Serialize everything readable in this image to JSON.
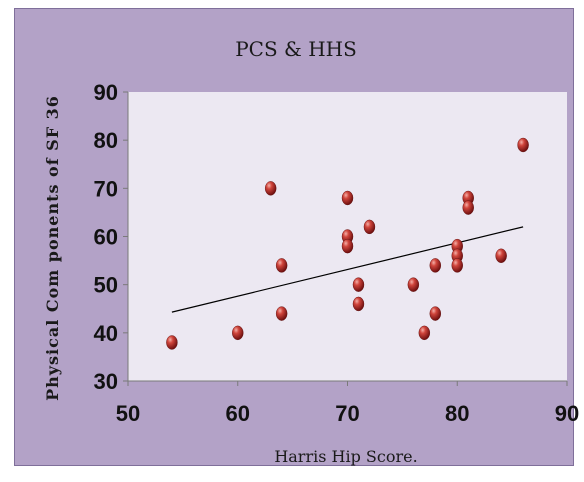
{
  "chart_data": {
    "type": "scatter",
    "title": "PCS & HHS",
    "xlabel": "Harris Hip Score.",
    "ylabel": "Physical Com ponents  of SF 36",
    "xlim": [
      50,
      90
    ],
    "ylim": [
      30,
      90
    ],
    "xticks": [
      "50",
      "60",
      "70",
      "80",
      "90"
    ],
    "yticks": [
      "30",
      "40",
      "50",
      "60",
      "70",
      "80",
      "90"
    ],
    "grid": false,
    "series": [
      {
        "points": [
          [
            54,
            38
          ],
          [
            60,
            40
          ],
          [
            63,
            70
          ],
          [
            64,
            54
          ],
          [
            64,
            44
          ],
          [
            70,
            68
          ],
          [
            70,
            60
          ],
          [
            70,
            58
          ],
          [
            71,
            50
          ],
          [
            71,
            46
          ],
          [
            72,
            62
          ],
          [
            76,
            50
          ],
          [
            77,
            40
          ],
          [
            78,
            54
          ],
          [
            78,
            44
          ],
          [
            80,
            58
          ],
          [
            80,
            56
          ],
          [
            80,
            54
          ],
          [
            81,
            68
          ],
          [
            81,
            66
          ],
          [
            84,
            56
          ],
          [
            86,
            79
          ]
        ]
      }
    ],
    "trendline": {
      "x": [
        54,
        86
      ],
      "y": [
        44.3,
        62
      ]
    },
    "colors": {
      "background": "#b3a2c7",
      "plot_area": "#ece8f2",
      "marker": "#b22222",
      "trendline": "#000000"
    }
  }
}
